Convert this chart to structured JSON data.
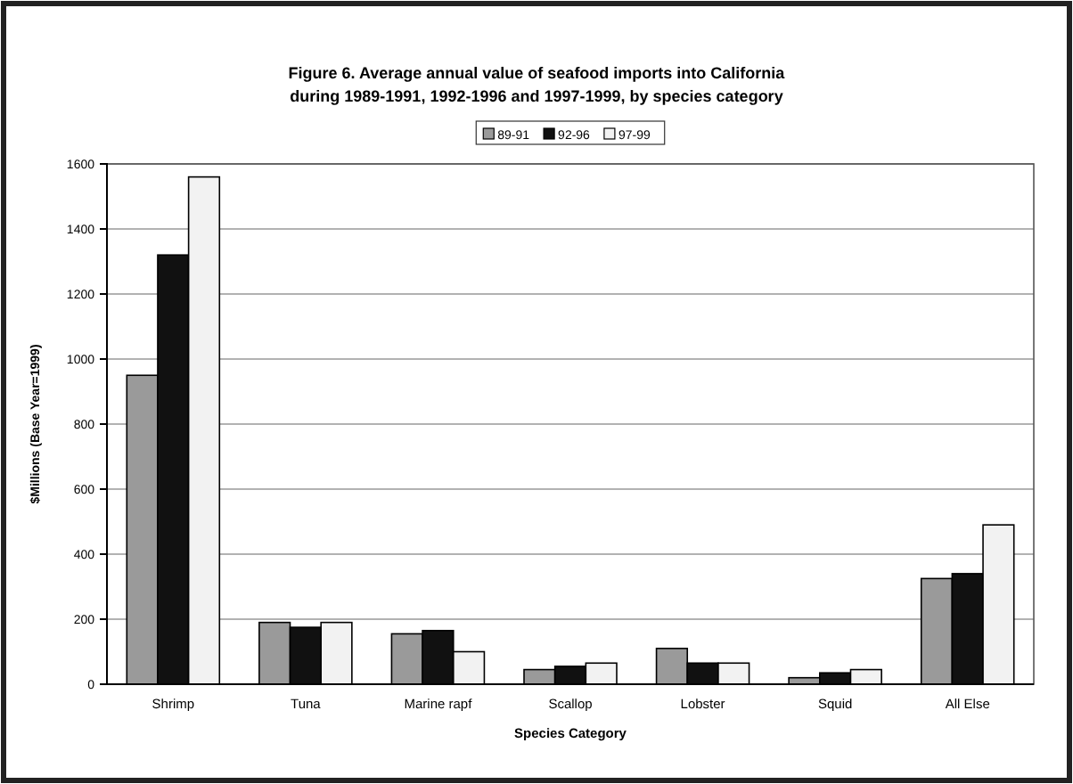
{
  "chart_data": {
    "type": "bar",
    "title": "Figure 6.  Average annual value of seafood imports into California",
    "subtitle": "during 1989-1991, 1992-1996 and 1997-1999, by species category",
    "xlabel": "Species Category",
    "ylabel": "$Millions (Base Year=1999)",
    "categories": [
      "Shrimp",
      "Tuna",
      "Marine rapf",
      "Scallop",
      "Lobster",
      "Squid",
      "All Else"
    ],
    "series": [
      {
        "name": "89-91",
        "color": "#9a9a9a",
        "values": [
          950,
          190,
          155,
          45,
          110,
          20,
          325
        ]
      },
      {
        "name": "92-96",
        "color": "#111111",
        "values": [
          1320,
          175,
          165,
          55,
          65,
          35,
          340
        ]
      },
      {
        "name": "97-99",
        "color": "#f2f2f2",
        "values": [
          1560,
          190,
          100,
          65,
          65,
          45,
          490
        ]
      }
    ],
    "ylim": [
      0,
      1600
    ],
    "yticks": [
      0,
      200,
      400,
      600,
      800,
      1000,
      1200,
      1400,
      1600
    ],
    "grid": "y",
    "legend": "top"
  }
}
